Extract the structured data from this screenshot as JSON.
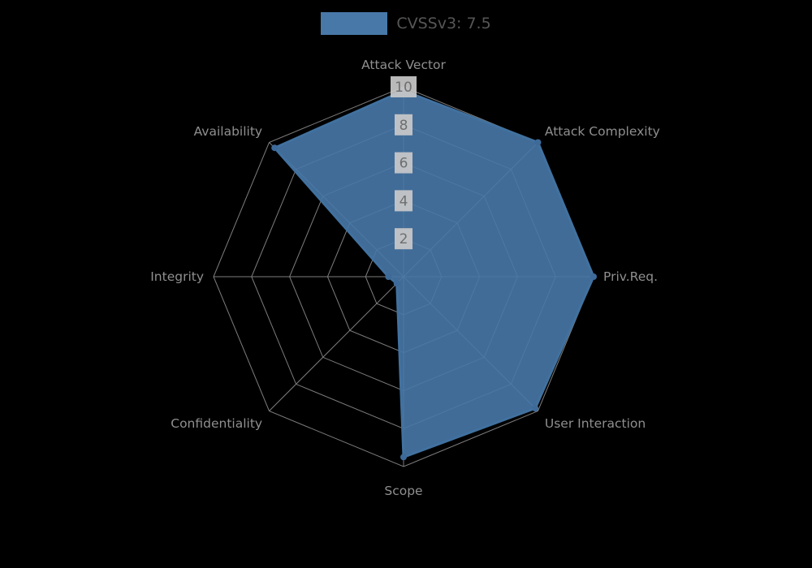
{
  "chart_data": {
    "type": "radar",
    "legend": {
      "label": "CVSSv3: 7.5",
      "position": "top"
    },
    "axes": [
      "Attack Vector",
      "Attack Complexity",
      "Priv.Req.",
      "User Interaction",
      "Scope",
      "Confidentiality",
      "Integrity",
      "Availability"
    ],
    "series": [
      {
        "name": "CVSSv3: 7.5",
        "values": [
          9.8,
          10,
          10,
          9.8,
          9.5,
          0.5,
          0.8,
          9.6
        ]
      }
    ],
    "scale": {
      "min": 0,
      "max": 10,
      "ticks": [
        2,
        4,
        6,
        8,
        10
      ]
    },
    "layout": {
      "grid": "polygon",
      "start_axis": "top",
      "direction": "clockwise"
    },
    "colors": {
      "background": "#000000",
      "series_fill": "#4878a8",
      "series_border": "#41719f",
      "point": "#3d6a99",
      "grid": "#7d7d7d",
      "axis_label": "#8f8f8f",
      "tick_text": "#6e6e6e",
      "tick_backdrop": "#c9c9c9",
      "legend_text": "#565656"
    }
  }
}
